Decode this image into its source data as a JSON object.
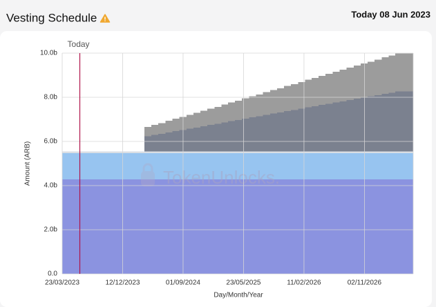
{
  "header": {
    "title": "Vesting Schedule",
    "date": "Today 08 Jun 2023"
  },
  "chart_data": {
    "type": "stacked-area",
    "xlabel": "Day/Month/Year",
    "ylabel": "Amount (ARB)",
    "watermark": "TokenUnlocks.",
    "today": {
      "label": "Today",
      "x": "2023-06-08",
      "color": "#b0144a"
    },
    "xlim": [
      "2023-03-23",
      "2027-06-03"
    ],
    "xticks": [
      {
        "value": "2023-03-23",
        "label": "23/03/2023"
      },
      {
        "value": "2023-12-12",
        "label": "12/12/2023"
      },
      {
        "value": "2024-09-01",
        "label": "01/09/2024"
      },
      {
        "value": "2025-05-23",
        "label": "23/05/2025"
      },
      {
        "value": "2026-02-11",
        "label": "11/02/2026"
      },
      {
        "value": "2026-11-02",
        "label": "02/11/2026"
      }
    ],
    "ylim": [
      0,
      10
    ],
    "yticks": [
      {
        "value": 0,
        "label": "0.0"
      },
      {
        "value": 2,
        "label": "2.0b"
      },
      {
        "value": 4,
        "label": "4.0b"
      },
      {
        "value": 6,
        "label": "6.0b"
      },
      {
        "value": 8,
        "label": "8.0b"
      },
      {
        "value": 10,
        "label": "10.0b"
      }
    ],
    "grid": true,
    "x": [
      "2023-03-23",
      "2024-03-16",
      "2024-04-16",
      "2024-05-16",
      "2024-06-16",
      "2024-07-16",
      "2024-08-16",
      "2024-09-16",
      "2024-10-16",
      "2024-11-16",
      "2024-12-16",
      "2025-01-16",
      "2025-02-16",
      "2025-03-16",
      "2025-04-16",
      "2025-05-16",
      "2025-06-16",
      "2025-07-16",
      "2025-08-16",
      "2025-09-16",
      "2025-10-16",
      "2025-11-16",
      "2025-12-16",
      "2026-01-16",
      "2026-02-16",
      "2026-03-16",
      "2026-04-16",
      "2026-05-16",
      "2026-06-16",
      "2026-07-16",
      "2026-08-16",
      "2026-09-16",
      "2026-10-16",
      "2026-11-16",
      "2026-12-16",
      "2027-01-16",
      "2027-02-16",
      "2027-03-16"
    ],
    "series": [
      {
        "color": "#8b93e0",
        "values": [
          4.28,
          4.28,
          4.28,
          4.28,
          4.28,
          4.28,
          4.28,
          4.28,
          4.28,
          4.28,
          4.28,
          4.28,
          4.28,
          4.28,
          4.28,
          4.28,
          4.28,
          4.28,
          4.28,
          4.28,
          4.28,
          4.28,
          4.28,
          4.28,
          4.28,
          4.28,
          4.28,
          4.28,
          4.28,
          4.28,
          4.28,
          4.28,
          4.28,
          4.28,
          4.28,
          4.28,
          4.28,
          4.28
        ]
      },
      {
        "color": "#97c4f0",
        "values": [
          1.19,
          1.19,
          1.19,
          1.19,
          1.19,
          1.19,
          1.19,
          1.19,
          1.19,
          1.19,
          1.19,
          1.19,
          1.19,
          1.19,
          1.19,
          1.19,
          1.19,
          1.19,
          1.19,
          1.19,
          1.19,
          1.19,
          1.19,
          1.19,
          1.19,
          1.19,
          1.19,
          1.19,
          1.19,
          1.19,
          1.19,
          1.19,
          1.19,
          1.19,
          1.19,
          1.19,
          1.19,
          1.19
        ]
      },
      {
        "color": "#d9dee4",
        "values": [
          0.08,
          0.08,
          0.08,
          0.08,
          0.08,
          0.08,
          0.08,
          0.08,
          0.08,
          0.08,
          0.08,
          0.08,
          0.08,
          0.08,
          0.08,
          0.08,
          0.08,
          0.08,
          0.08,
          0.08,
          0.08,
          0.08,
          0.08,
          0.08,
          0.08,
          0.08,
          0.08,
          0.08,
          0.08,
          0.08,
          0.08,
          0.08,
          0.08,
          0.08,
          0.08,
          0.08,
          0.08,
          0.08
        ]
      },
      {
        "color": "#7b818f",
        "values": [
          0,
          0.69,
          0.75,
          0.8,
          0.86,
          0.92,
          0.97,
          1.03,
          1.08,
          1.14,
          1.2,
          1.25,
          1.31,
          1.37,
          1.42,
          1.48,
          1.54,
          1.59,
          1.65,
          1.71,
          1.76,
          1.82,
          1.87,
          1.93,
          1.99,
          2.04,
          2.1,
          2.16,
          2.21,
          2.27,
          2.33,
          2.38,
          2.44,
          2.49,
          2.55,
          2.61,
          2.66,
          2.72
        ]
      },
      {
        "color": "#9c9c9c",
        "values": [
          0,
          0.41,
          0.45,
          0.48,
          0.52,
          0.56,
          0.59,
          0.63,
          0.66,
          0.7,
          0.74,
          0.77,
          0.81,
          0.85,
          0.88,
          0.92,
          0.96,
          0.99,
          1.03,
          1.07,
          1.1,
          1.14,
          1.17,
          1.21,
          1.25,
          1.28,
          1.32,
          1.36,
          1.39,
          1.43,
          1.47,
          1.5,
          1.54,
          1.57,
          1.61,
          1.65,
          1.68,
          1.72
        ]
      }
    ]
  }
}
